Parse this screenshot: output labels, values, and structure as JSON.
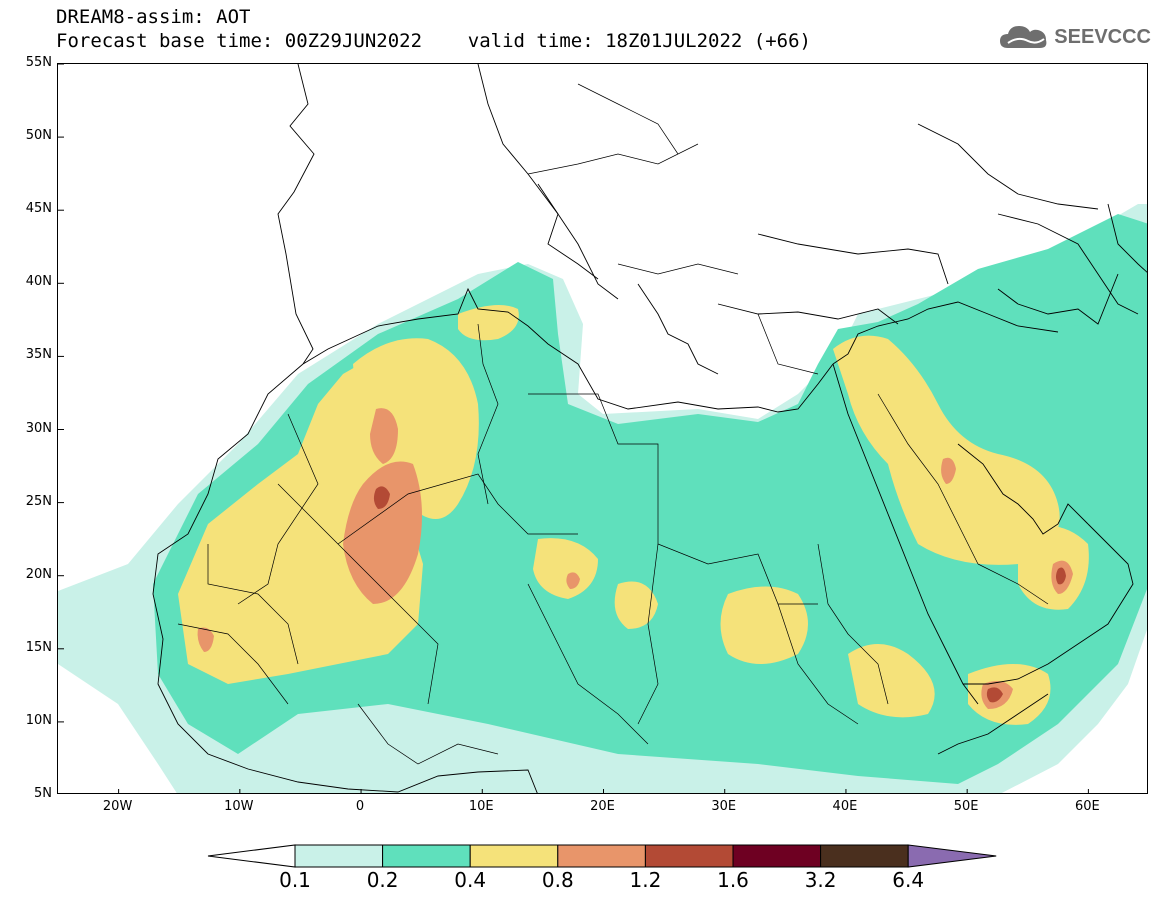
{
  "header": {
    "title_line1": "DREAM8-assim: AOT",
    "title_line2": "Forecast base time: 00Z29JUN2022    valid time: 18Z01JUL2022 (+66)"
  },
  "logo": {
    "text": "SEEVCCC",
    "icon": "cloud-icon",
    "color": "#6e6e6e"
  },
  "map": {
    "lat_labels": [
      "55N",
      "50N",
      "45N",
      "40N",
      "35N",
      "30N",
      "25N",
      "20N",
      "15N",
      "10N",
      "5N"
    ],
    "lon_labels": [
      "20W",
      "10W",
      "0",
      "10E",
      "20E",
      "30E",
      "40E",
      "50E",
      "60E"
    ],
    "lat_range": [
      5,
      55
    ],
    "lon_range": [
      -25,
      65
    ]
  },
  "legend": {
    "labels": [
      "0.1",
      "0.2",
      "0.4",
      "0.8",
      "1.2",
      "1.6",
      "3.2",
      "6.4"
    ],
    "colors": [
      "#ffffff",
      "#c9f1e8",
      "#5fe0bc",
      "#f5e27a",
      "#e8956a",
      "#b34a35",
      "#6e0022",
      "#4a2f1e",
      "#8a6bb0"
    ],
    "left_arrow_color": "#ffffff",
    "right_arrow_color": "#8a6bb0"
  }
}
